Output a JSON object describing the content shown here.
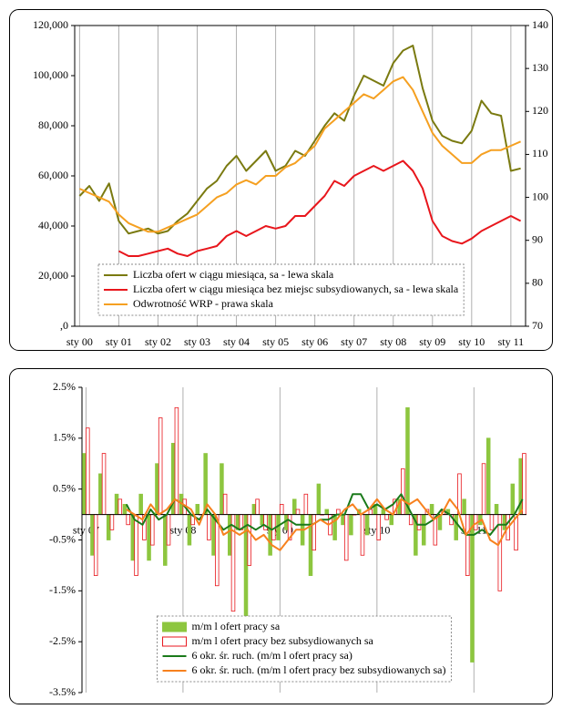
{
  "chart_data": [
    {
      "type": "line",
      "categories": [
        "sty 00",
        null,
        null,
        null,
        "sty 01",
        null,
        null,
        null,
        "sty 02",
        null,
        null,
        null,
        "sty 03",
        null,
        null,
        null,
        "sty 04",
        null,
        null,
        null,
        "sty 05",
        null,
        null,
        null,
        "sty 06",
        null,
        null,
        null,
        "sty 07",
        null,
        null,
        null,
        "sty 08",
        null,
        null,
        null,
        "sty 09",
        null,
        null,
        null,
        "sty 10",
        null,
        null,
        null,
        "sty 11",
        null
      ],
      "series": [
        {
          "name": "Liczba ofert w ciągu miesiąca, sa - lewa skala",
          "color": "#7a7a10",
          "values": [
            52000,
            56000,
            50000,
            57000,
            42000,
            37000,
            38000,
            39000,
            37000,
            38000,
            42000,
            45000,
            50000,
            55000,
            58000,
            64000,
            68000,
            62000,
            66000,
            70000,
            62000,
            64000,
            70000,
            68000,
            74000,
            80000,
            85000,
            82000,
            92000,
            100000,
            98000,
            96000,
            105000,
            110000,
            112000,
            95000,
            82000,
            76000,
            74000,
            73000,
            78000,
            90000,
            85000,
            84000,
            62000,
            63000
          ]
        },
        {
          "name": "Liczba ofert w ciągu miesiąca bez miejsc subsydiowanych, sa - lewa skala",
          "color": "#e8161c",
          "values": [
            null,
            null,
            null,
            null,
            30000,
            28000,
            28000,
            29000,
            30000,
            31000,
            29000,
            28000,
            30000,
            31000,
            32000,
            36000,
            38000,
            36000,
            38000,
            40000,
            39000,
            40000,
            44000,
            44000,
            48000,
            52000,
            58000,
            56000,
            60000,
            62000,
            64000,
            62000,
            64000,
            66000,
            62000,
            55000,
            42000,
            36000,
            34000,
            33000,
            35000,
            38000,
            40000,
            42000,
            44000,
            42000
          ]
        },
        {
          "name": "Odwrotność WRP - prawa skala",
          "color": "#f5a021",
          "axis": "y2",
          "values": [
            102,
            101,
            100,
            99,
            96,
            94,
            93,
            92,
            92,
            93,
            94,
            95,
            96,
            98,
            100,
            101,
            103,
            104,
            103,
            105,
            105,
            107,
            108,
            110,
            112,
            116,
            118,
            120,
            122,
            124,
            123,
            125,
            127,
            128,
            125,
            120,
            115,
            112,
            110,
            108,
            108,
            110,
            111,
            111,
            112,
            113
          ]
        }
      ],
      "ylim": [
        0,
        120000
      ],
      "yticks": [
        {
          "value": 0,
          "label": ",0"
        },
        {
          "value": 20000,
          "label": "20,000"
        },
        {
          "value": 40000,
          "label": "40,000"
        },
        {
          "value": 60000,
          "label": "60,000"
        },
        {
          "value": 80000,
          "label": "80,000"
        },
        {
          "value": 100000,
          "label": "100,000"
        },
        {
          "value": 120000,
          "label": "120,000"
        }
      ],
      "y2lim": [
        70,
        140
      ],
      "y2ticks": [
        70,
        80,
        90,
        100,
        110,
        120,
        130,
        140
      ],
      "grid": "x",
      "legend": "bottom-left"
    },
    {
      "type": "combo",
      "categories": [
        "sty 07",
        null,
        null,
        null,
        null,
        null,
        null,
        null,
        null,
        null,
        null,
        null,
        "sty 08",
        null,
        null,
        null,
        null,
        null,
        null,
        null,
        null,
        null,
        null,
        null,
        "sty 09",
        null,
        null,
        null,
        null,
        null,
        null,
        null,
        null,
        null,
        null,
        null,
        "sty 10",
        null,
        null,
        null,
        null,
        null,
        null,
        null,
        null,
        null,
        null,
        null,
        "sty 11",
        null,
        null,
        null,
        null,
        null,
        null
      ],
      "series": [
        {
          "name": "m/m l ofert pracy sa",
          "type": "bar",
          "color": "#8dc63f",
          "fill": "#8dc63f",
          "values": [
            1.2,
            -0.8,
            0.8,
            -0.5,
            0.4,
            0.2,
            -0.9,
            0.4,
            -0.9,
            1.0,
            -1.0,
            1.4,
            0.4,
            -0.6,
            0.2,
            1.2,
            -0.8,
            1.0,
            -0.8,
            -0.3,
            -2.1,
            0.2,
            -0.2,
            -0.8,
            -0.5,
            -0.3,
            0.3,
            -0.6,
            -1.2,
            0.6,
            0.1,
            -0.5,
            -0.2,
            -0.4,
            0.1,
            -0.4,
            0.2,
            0.1,
            -0.2,
            0.3,
            2.1,
            -0.8,
            -0.6,
            0.2,
            -0.3,
            0.1,
            -0.5,
            0.3,
            -2.9,
            -0.2,
            1.5,
            0.2,
            -0.3,
            0.6,
            1.1
          ]
        },
        {
          "name": "m/m l ofert pracy bez subsydiowanych sa",
          "type": "bar",
          "color": "#e8161c",
          "fill": "#ffffff",
          "values": [
            1.7,
            -1.2,
            1.2,
            -0.3,
            0.3,
            -0.2,
            -1.2,
            -0.5,
            -0.6,
            1.9,
            -0.6,
            2.1,
            0.3,
            -0.2,
            0.0,
            -0.5,
            -1.4,
            0.4,
            -1.9,
            -0.3,
            -1.0,
            0.3,
            -0.3,
            -0.5,
            0.2,
            -0.5,
            0.1,
            0.4,
            -0.7,
            0.0,
            -0.4,
            0.1,
            -0.9,
            0.0,
            -0.8,
            0.1,
            -0.5,
            -0.1,
            0.3,
            0.9,
            -0.2,
            -0.3,
            0.1,
            -0.6,
            0.1,
            -0.2,
            0.8,
            -1.2,
            -0.3,
            1.0,
            -0.3,
            -1.5,
            -0.5,
            -0.7,
            1.2
          ]
        },
        {
          "name": "6 okr. śr. ruch. (m/m l ofert pracy sa)",
          "type": "line",
          "color": "#1a7a1a",
          "values": [
            null,
            null,
            null,
            null,
            null,
            0.2,
            -0.1,
            -0.2,
            0.1,
            -0.1,
            0.0,
            0.3,
            0.2,
            0.0,
            -0.1,
            0.1,
            -0.1,
            -0.3,
            -0.2,
            -0.3,
            -0.2,
            -0.3,
            -0.2,
            -0.3,
            -0.2,
            -0.1,
            -0.2,
            -0.2,
            -0.2,
            -0.1,
            -0.1,
            0.0,
            0.0,
            0.4,
            0.4,
            0.1,
            0.2,
            0.1,
            0.2,
            0.4,
            0.1,
            -0.2,
            -0.2,
            -0.1,
            0.1,
            0.0,
            -0.2,
            -0.4,
            -0.4,
            -0.3,
            -0.4,
            -0.2,
            -0.2,
            0.0,
            0.3
          ]
        },
        {
          "name": "6 okr. śr. ruch. (m/m l ofert pracy bez subsydiowanych sa)",
          "type": "line",
          "color": "#f7811e",
          "values": [
            null,
            null,
            null,
            null,
            null,
            0.1,
            0.0,
            -0.1,
            0.2,
            0.0,
            0.1,
            0.3,
            0.2,
            0.1,
            -0.2,
            0.2,
            0.0,
            -0.4,
            -0.3,
            -0.4,
            -0.3,
            -0.5,
            -0.4,
            -0.6,
            -0.7,
            -0.5,
            -0.3,
            -0.3,
            -0.2,
            -0.1,
            -0.2,
            -0.1,
            0.1,
            0.2,
            0.0,
            0.1,
            0.3,
            0.1,
            0.0,
            0.3,
            0.2,
            0.3,
            0.1,
            -0.1,
            0.0,
            0.3,
            0.1,
            -0.4,
            -0.2,
            -0.1,
            -0.5,
            -0.6,
            -0.3,
            -0.1,
            0.1
          ]
        }
      ],
      "ylim": [
        -3.5,
        2.5
      ],
      "yticks": [
        {
          "value": -3.5,
          "label": "-3.5%"
        },
        {
          "value": -2.5,
          "label": "-2.5%"
        },
        {
          "value": -1.5,
          "label": "-1.5%"
        },
        {
          "value": -0.5,
          "label": "-0.5%"
        },
        {
          "value": 0.5,
          "label": "0.5%"
        },
        {
          "value": 1.5,
          "label": "1.5%"
        },
        {
          "value": 2.5,
          "label": "2.5%"
        }
      ],
      "grid": "x",
      "legend": "bottom-center"
    }
  ]
}
